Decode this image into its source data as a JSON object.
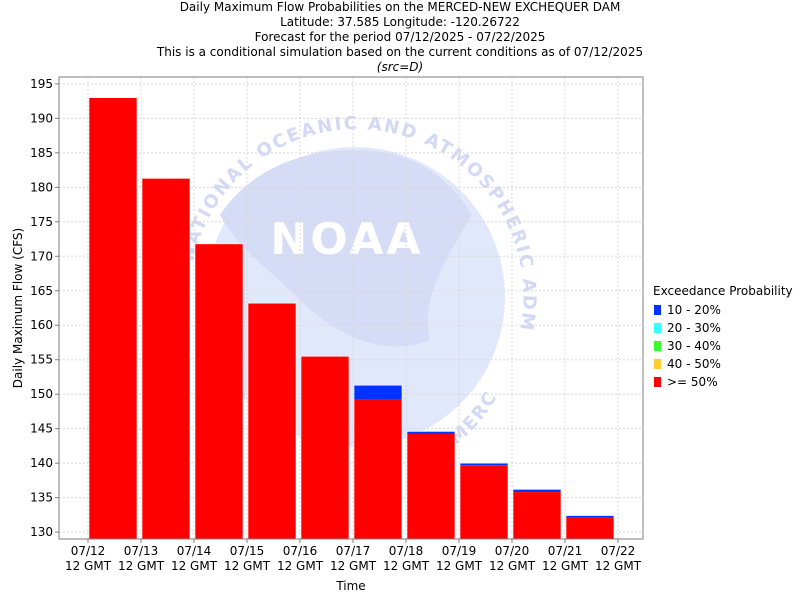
{
  "titles": {
    "line1": "Daily Maximum Flow Probabilities on the MERCED-NEW EXCHEQUER DAM",
    "line2": "Latitude: 37.585 Longitude: -120.26722",
    "line3": "Forecast for the period 07/12/2025 - 07/22/2025",
    "line4": "This is a conditional simulation based on the current conditions as of 07/12/2025",
    "line5": "(src=D)"
  },
  "watermark": {
    "brand": "NOAA",
    "top_text": "NATIONAL OCEANIC AND ATMOSPHERIC ADMINISTRATION",
    "bottom_text": "COMMERCE"
  },
  "legend": {
    "title": "Exceedance Probability",
    "items": [
      {
        "label": "10 - 20%",
        "color": "#0033ff"
      },
      {
        "label": "20 - 30%",
        "color": "#33ffff"
      },
      {
        "label": "30 - 40%",
        "color": "#33ff33"
      },
      {
        "label": "40 - 50%",
        "color": "#ffcc33"
      },
      {
        "label": ">= 50%",
        "color": "#ff0000"
      }
    ]
  },
  "chart_data": {
    "type": "bar",
    "xlabel": "Time",
    "ylabel": "Daily Maximum Flow (CFS)",
    "ylim": [
      129,
      196
    ],
    "yticks": [
      130,
      135,
      140,
      145,
      150,
      155,
      160,
      165,
      170,
      175,
      180,
      185,
      190,
      195
    ],
    "grid": true,
    "legend_position": "right",
    "x_ticks": [
      {
        "date": "07/12",
        "time": "12 GMT"
      },
      {
        "date": "07/13",
        "time": "12 GMT"
      },
      {
        "date": "07/14",
        "time": "12 GMT"
      },
      {
        "date": "07/15",
        "time": "12 GMT"
      },
      {
        "date": "07/16",
        "time": "12 GMT"
      },
      {
        "date": "07/17",
        "time": "12 GMT"
      },
      {
        "date": "07/18",
        "time": "12 GMT"
      },
      {
        "date": "07/19",
        "time": "12 GMT"
      },
      {
        "date": "07/20",
        "time": "12 GMT"
      },
      {
        "date": "07/21",
        "time": "12 GMT"
      },
      {
        "date": "07/22",
        "time": "12 GMT"
      }
    ],
    "bar_categories": [
      "07/12",
      "07/13",
      "07/14",
      "07/15",
      "07/16",
      "07/17",
      "07/18",
      "07/19",
      "07/20",
      "07/21"
    ],
    "series": [
      {
        "name": ">= 50%",
        "color": "#ff0000",
        "values": [
          193.0,
          181.3,
          171.8,
          163.2,
          155.5,
          149.3,
          144.3,
          139.7,
          135.8,
          132.1
        ]
      },
      {
        "name": "40 - 50%",
        "color": "#ffcc33",
        "values": [
          193.0,
          181.3,
          171.8,
          163.2,
          155.5,
          149.3,
          144.3,
          139.7,
          135.8,
          132.1
        ]
      },
      {
        "name": "30 - 40%",
        "color": "#33ff33",
        "values": [
          193.0,
          181.3,
          171.8,
          163.2,
          155.5,
          149.3,
          144.3,
          139.7,
          135.8,
          132.1
        ]
      },
      {
        "name": "20 - 30%",
        "color": "#33ffff",
        "values": [
          193.0,
          181.3,
          171.8,
          163.2,
          155.5,
          149.3,
          144.3,
          139.7,
          135.8,
          132.1
        ]
      },
      {
        "name": "10 - 20%",
        "color": "#0033ff",
        "values": [
          193.0,
          181.3,
          171.8,
          163.2,
          155.5,
          151.3,
          144.6,
          140.0,
          136.2,
          132.4
        ]
      }
    ]
  }
}
